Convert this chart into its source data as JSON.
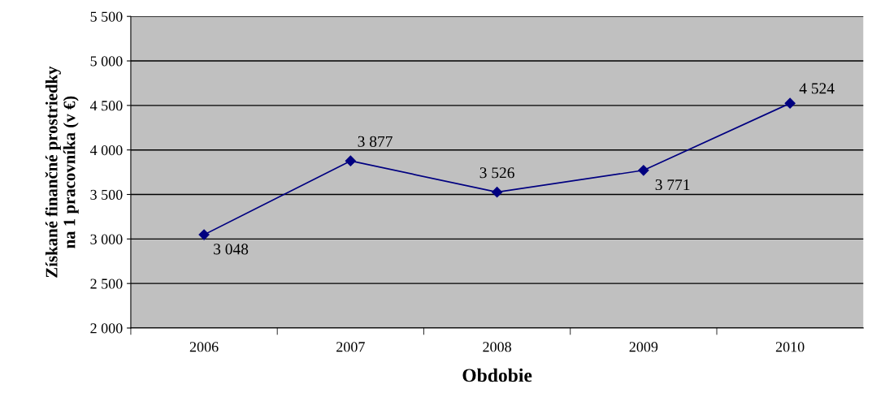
{
  "chart_data": {
    "type": "line",
    "xlabel": "Obdobie",
    "ylabel": "Získané finančné prostriedky\nna 1 pracovníka (v €)",
    "categories": [
      "2006",
      "2007",
      "2008",
      "2009",
      "2010"
    ],
    "series": [
      {
        "color": "#000080",
        "values": [
          3048,
          3877,
          3526,
          3771,
          4524
        ],
        "value_labels": [
          "3 048",
          "3 877",
          "3 526",
          "3 771",
          "4 524"
        ]
      }
    ],
    "ylim": [
      2000,
      5500
    ],
    "yticks": [
      {
        "value": 2000,
        "label": "2 000"
      },
      {
        "value": 2500,
        "label": "2 500"
      },
      {
        "value": 3000,
        "label": "3 000"
      },
      {
        "value": 3500,
        "label": "3 500"
      },
      {
        "value": 4000,
        "label": "4 000"
      },
      {
        "value": 4500,
        "label": "4 500"
      },
      {
        "value": 5000,
        "label": "5 000"
      },
      {
        "value": 5500,
        "label": "5 500"
      }
    ],
    "grid": "y",
    "marker": "diamond",
    "line_style": "solid",
    "legend": false
  }
}
